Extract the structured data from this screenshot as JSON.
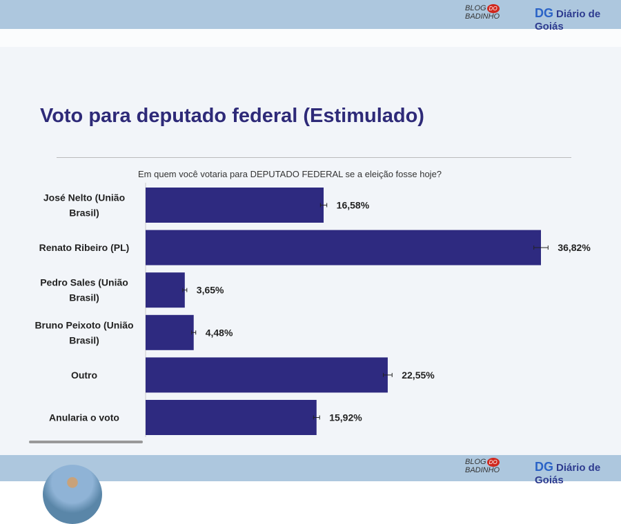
{
  "header": {
    "blog_logo_top": "BLOG",
    "blog_logo_do": "DO",
    "blog_logo_bottom": "BADINHO",
    "dg_mark": "DG",
    "dg_name": "Diário de Goiás"
  },
  "colors": {
    "bar": "#2e2a80",
    "band": "#adc7de"
  },
  "chart_data": {
    "type": "bar",
    "orientation": "horizontal",
    "title": "Voto para deputado federal (Estimulado)",
    "subtitle": "Em quem você votaria para DEPUTADO FEDERAL se a eleição fosse hoje?",
    "categories": [
      [
        "José Nelto (União",
        "Brasil)"
      ],
      [
        "Renato Ribeiro (PL)"
      ],
      [
        "Pedro Sales (União",
        "Brasil)"
      ],
      [
        "Bruno Peixoto (União",
        "Brasil)"
      ],
      [
        "Outro"
      ],
      [
        "Anularia o voto"
      ]
    ],
    "values": [
      16.58,
      36.82,
      3.65,
      4.48,
      22.55,
      15.92
    ],
    "value_labels": [
      "16,58%",
      "36,82%",
      "3,65%",
      "4,48%",
      "22,55%",
      "15,92%"
    ],
    "error_bars": true,
    "xlim": [
      0,
      40
    ]
  }
}
